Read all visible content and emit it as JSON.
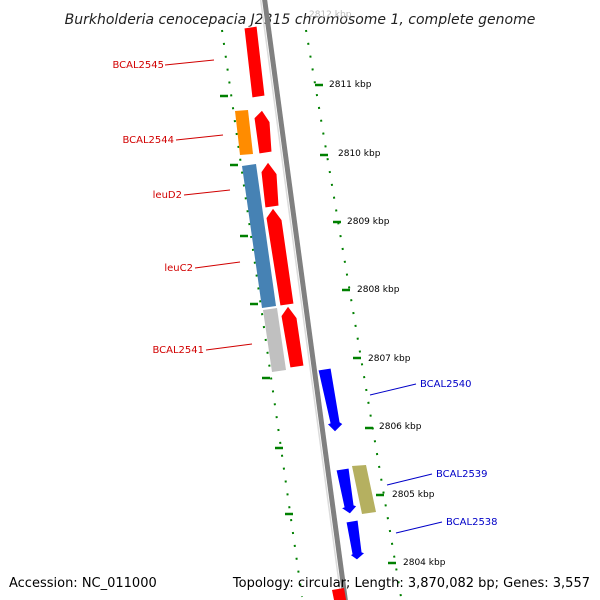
{
  "title": "Burkholderia cenocepacia J2315 chromosome 1, complete genome",
  "accession": "Accession: NC_011000",
  "summary": "Topology: circular; Length: 3,870,082 bp; Genes: 3,557",
  "top_faded_label": "2812 kbp",
  "kbp_ticks": [
    {
      "label": "2811 kbp"
    },
    {
      "label": "2810 kbp"
    },
    {
      "label": "2809 kbp"
    },
    {
      "label": "2808 kbp"
    },
    {
      "label": "2807 kbp"
    },
    {
      "label": "2806 kbp"
    },
    {
      "label": "2805 kbp"
    },
    {
      "label": "2804 kbp"
    }
  ],
  "gene_labels": [
    {
      "name": "BCAL2545",
      "strand": "reverse"
    },
    {
      "name": "BCAL2544",
      "strand": "reverse"
    },
    {
      "name": "leuD2",
      "strand": "reverse"
    },
    {
      "name": "leuC2",
      "strand": "reverse"
    },
    {
      "name": "BCAL2541",
      "strand": "reverse"
    },
    {
      "name": "BCAL2540",
      "strand": "forward"
    },
    {
      "name": "BCAL2539",
      "strand": "forward"
    },
    {
      "name": "BCAL2538",
      "strand": "forward"
    }
  ],
  "colors": {
    "reverse_label": "#d10000",
    "forward_label": "#0000c8",
    "gene_red": "#ff0000",
    "gene_blue": "#0000ff",
    "cog_orange": "#ff8c00",
    "cog_steelblue": "#4682b4",
    "cog_grey": "#c0c0c0",
    "cog_khaki": "#b5b060",
    "backbone": "#808080",
    "tick_green": "#008000"
  }
}
